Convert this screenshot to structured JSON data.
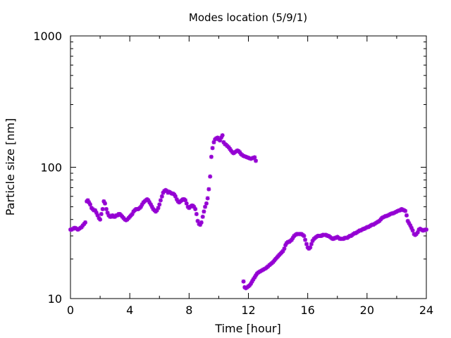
{
  "chart_data": {
    "type": "scatter",
    "title": "Modes location (5/9/1)",
    "xlabel": "Time [hour]",
    "ylabel": "Particle size [nm]",
    "xlim": [
      0,
      24
    ],
    "ylim": [
      10,
      1000
    ],
    "yscale": "log",
    "x_ticks": [
      0,
      4,
      8,
      12,
      16,
      20,
      24
    ],
    "x_tick_labels": [
      "0",
      "4",
      "8",
      "12",
      "16",
      "20",
      "24"
    ],
    "y_ticks": [
      10,
      100,
      1000
    ],
    "y_tick_labels": [
      "10",
      "100",
      "1000"
    ],
    "grid": false,
    "marker_color": "#9400d3",
    "marker": "star",
    "series": [
      {
        "points": [
          [
            0.0,
            33.5
          ],
          [
            0.08,
            33.5
          ],
          [
            0.17,
            34.0
          ],
          [
            0.25,
            34.5
          ],
          [
            0.33,
            34.5
          ],
          [
            0.42,
            34.0
          ],
          [
            0.5,
            33.5
          ],
          [
            0.58,
            34.0
          ],
          [
            0.67,
            34.5
          ],
          [
            0.75,
            35.0
          ],
          [
            0.83,
            36.0
          ],
          [
            0.92,
            37.0
          ],
          [
            1.0,
            38.0
          ],
          [
            1.1,
            55.0
          ],
          [
            1.17,
            56.0
          ],
          [
            1.25,
            54.0
          ],
          [
            1.33,
            52.0
          ],
          [
            1.42,
            49.0
          ],
          [
            1.5,
            48.0
          ],
          [
            1.58,
            47.0
          ],
          [
            1.67,
            47.0
          ],
          [
            1.75,
            45.0
          ],
          [
            1.83,
            43.0
          ],
          [
            1.92,
            41.0
          ],
          [
            2.0,
            40.0
          ],
          [
            2.08,
            44.0
          ],
          [
            2.17,
            48.0
          ],
          [
            2.25,
            55.0
          ],
          [
            2.33,
            53.0
          ],
          [
            2.42,
            48.0
          ],
          [
            2.5,
            45.0
          ],
          [
            2.58,
            43.0
          ],
          [
            2.67,
            42.0
          ],
          [
            2.75,
            42.0
          ],
          [
            2.83,
            43.0
          ],
          [
            2.92,
            42.0
          ],
          [
            3.0,
            42.0
          ],
          [
            3.08,
            43.0
          ],
          [
            3.17,
            43.0
          ],
          [
            3.25,
            44.0
          ],
          [
            3.33,
            44.0
          ],
          [
            3.42,
            43.0
          ],
          [
            3.5,
            42.0
          ],
          [
            3.58,
            41.0
          ],
          [
            3.67,
            40.0
          ],
          [
            3.75,
            39.5
          ],
          [
            3.83,
            40.0
          ],
          [
            3.92,
            41.0
          ],
          [
            4.0,
            42.0
          ],
          [
            4.08,
            43.0
          ],
          [
            4.17,
            44.0
          ],
          [
            4.25,
            46.0
          ],
          [
            4.33,
            47.0
          ],
          [
            4.42,
            48.0
          ],
          [
            4.5,
            48.0
          ],
          [
            4.58,
            48.0
          ],
          [
            4.67,
            49.0
          ],
          [
            4.75,
            50.0
          ],
          [
            4.83,
            52.0
          ],
          [
            4.92,
            54.0
          ],
          [
            5.0,
            55.0
          ],
          [
            5.08,
            56.0
          ],
          [
            5.17,
            57.0
          ],
          [
            5.25,
            56.0
          ],
          [
            5.33,
            54.0
          ],
          [
            5.42,
            52.0
          ],
          [
            5.5,
            50.0
          ],
          [
            5.58,
            48.0
          ],
          [
            5.67,
            47.0
          ],
          [
            5.75,
            46.0
          ],
          [
            5.83,
            47.0
          ],
          [
            5.92,
            49.0
          ],
          [
            6.0,
            52.0
          ],
          [
            6.08,
            56.0
          ],
          [
            6.17,
            60.0
          ],
          [
            6.25,
            64.0
          ],
          [
            6.33,
            66.0
          ],
          [
            6.42,
            67.0
          ],
          [
            6.5,
            66.0
          ],
          [
            6.58,
            64.0
          ],
          [
            6.67,
            65.0
          ],
          [
            6.75,
            64.0
          ],
          [
            6.83,
            63.0
          ],
          [
            6.92,
            63.0
          ],
          [
            7.0,
            62.0
          ],
          [
            7.08,
            60.0
          ],
          [
            7.17,
            57.0
          ],
          [
            7.25,
            55.0
          ],
          [
            7.33,
            54.0
          ],
          [
            7.42,
            55.0
          ],
          [
            7.5,
            56.0
          ],
          [
            7.58,
            57.0
          ],
          [
            7.67,
            57.0
          ],
          [
            7.75,
            56.0
          ],
          [
            7.83,
            53.0
          ],
          [
            7.92,
            50.0
          ],
          [
            8.0,
            49.0
          ],
          [
            8.08,
            50.0
          ],
          [
            8.17,
            51.0
          ],
          [
            8.25,
            51.0
          ],
          [
            8.33,
            50.0
          ],
          [
            8.42,
            48.0
          ],
          [
            8.5,
            44.0
          ],
          [
            8.58,
            39.0
          ],
          [
            8.67,
            37.0
          ],
          [
            8.75,
            36.5
          ],
          [
            8.83,
            38.0
          ],
          [
            8.92,
            42.0
          ],
          [
            9.0,
            46.0
          ],
          [
            9.08,
            50.0
          ],
          [
            9.17,
            53.0
          ],
          [
            9.25,
            58.0
          ],
          [
            9.33,
            68.0
          ],
          [
            9.42,
            85.0
          ],
          [
            9.5,
            120.0
          ],
          [
            9.58,
            140.0
          ],
          [
            9.67,
            155.0
          ],
          [
            9.75,
            163.0
          ],
          [
            9.83,
            166.0
          ],
          [
            9.92,
            168.0
          ],
          [
            10.0,
            163.0
          ],
          [
            10.08,
            160.0
          ],
          [
            10.17,
            168.0
          ],
          [
            10.25,
            175.0
          ],
          [
            10.33,
            155.0
          ],
          [
            10.42,
            150.0
          ],
          [
            10.5,
            148.0
          ],
          [
            10.58,
            145.0
          ],
          [
            10.67,
            142.0
          ],
          [
            10.75,
            138.0
          ],
          [
            10.83,
            134.0
          ],
          [
            10.92,
            130.0
          ],
          [
            11.0,
            128.0
          ],
          [
            11.08,
            130.0
          ],
          [
            11.17,
            132.0
          ],
          [
            11.25,
            134.0
          ],
          [
            11.33,
            133.0
          ],
          [
            11.42,
            130.0
          ],
          [
            11.5,
            126.0
          ],
          [
            11.58,
            124.0
          ],
          [
            11.67,
            122.0
          ],
          [
            11.75,
            121.0
          ],
          [
            11.83,
            120.0
          ],
          [
            11.92,
            119.0
          ],
          [
            12.0,
            118.0
          ],
          [
            12.08,
            117.0
          ],
          [
            12.17,
            116.0
          ],
          [
            12.25,
            117.0
          ],
          [
            12.33,
            118.0
          ],
          [
            12.42,
            119.0
          ],
          [
            12.5,
            112.0
          ]
        ]
      },
      {
        "points": [
          [
            11.67,
            13.5
          ],
          [
            11.75,
            12.2
          ],
          [
            11.83,
            12.0
          ],
          [
            11.92,
            12.2
          ],
          [
            12.0,
            12.4
          ],
          [
            12.08,
            12.6
          ],
          [
            12.17,
            13.0
          ],
          [
            12.25,
            13.5
          ],
          [
            12.33,
            14.0
          ],
          [
            12.42,
            14.5
          ],
          [
            12.5,
            15.0
          ],
          [
            12.58,
            15.5
          ],
          [
            12.67,
            15.8
          ],
          [
            12.75,
            16.0
          ],
          [
            12.83,
            16.2
          ],
          [
            12.92,
            16.4
          ],
          [
            13.0,
            16.6
          ],
          [
            13.08,
            16.8
          ],
          [
            13.17,
            17.0
          ],
          [
            13.25,
            17.3
          ],
          [
            13.33,
            17.6
          ],
          [
            13.42,
            18.0
          ],
          [
            13.5,
            18.3
          ],
          [
            13.58,
            18.6
          ],
          [
            13.67,
            19.0
          ],
          [
            13.75,
            19.5
          ],
          [
            13.83,
            20.0
          ],
          [
            13.92,
            20.5
          ],
          [
            14.0,
            21.0
          ],
          [
            14.08,
            21.5
          ],
          [
            14.17,
            22.0
          ],
          [
            14.25,
            22.5
          ],
          [
            14.33,
            23.0
          ],
          [
            14.42,
            24.0
          ],
          [
            14.5,
            25.5
          ],
          [
            14.58,
            26.5
          ],
          [
            14.67,
            27.0
          ],
          [
            14.75,
            27.0
          ],
          [
            14.83,
            27.5
          ],
          [
            14.92,
            28.0
          ],
          [
            15.0,
            29.0
          ],
          [
            15.08,
            30.0
          ],
          [
            15.17,
            30.5
          ],
          [
            15.25,
            31.0
          ],
          [
            15.33,
            31.0
          ],
          [
            15.42,
            31.0
          ],
          [
            15.5,
            31.0
          ],
          [
            15.58,
            31.0
          ],
          [
            15.67,
            30.5
          ],
          [
            15.75,
            30.0
          ],
          [
            15.83,
            28.0
          ],
          [
            15.92,
            26.0
          ],
          [
            16.0,
            24.5
          ],
          [
            16.08,
            24.0
          ],
          [
            16.17,
            24.5
          ],
          [
            16.25,
            26.0
          ],
          [
            16.33,
            27.5
          ],
          [
            16.42,
            28.5
          ],
          [
            16.5,
            29.0
          ],
          [
            16.58,
            29.5
          ],
          [
            16.67,
            30.0
          ],
          [
            16.75,
            30.0
          ],
          [
            16.83,
            30.0
          ],
          [
            16.92,
            30.0
          ],
          [
            17.0,
            30.5
          ],
          [
            17.08,
            30.5
          ],
          [
            17.17,
            30.5
          ],
          [
            17.25,
            30.5
          ],
          [
            17.33,
            30.0
          ],
          [
            17.42,
            30.0
          ],
          [
            17.5,
            29.5
          ],
          [
            17.58,
            29.0
          ],
          [
            17.67,
            28.5
          ],
          [
            17.75,
            28.5
          ],
          [
            17.83,
            29.0
          ],
          [
            17.92,
            29.0
          ],
          [
            18.0,
            29.5
          ],
          [
            18.08,
            29.0
          ],
          [
            18.17,
            28.5
          ],
          [
            18.25,
            28.5
          ],
          [
            18.33,
            28.5
          ],
          [
            18.42,
            28.5
          ],
          [
            18.5,
            29.0
          ],
          [
            18.58,
            29.0
          ],
          [
            18.67,
            29.0
          ],
          [
            18.75,
            29.5
          ],
          [
            18.83,
            30.0
          ],
          [
            18.92,
            30.0
          ],
          [
            19.0,
            30.5
          ],
          [
            19.08,
            31.0
          ],
          [
            19.17,
            31.5
          ],
          [
            19.25,
            31.5
          ],
          [
            19.33,
            32.0
          ],
          [
            19.42,
            32.5
          ],
          [
            19.5,
            33.0
          ],
          [
            19.58,
            33.0
          ],
          [
            19.67,
            33.5
          ],
          [
            19.75,
            34.0
          ],
          [
            19.83,
            34.0
          ],
          [
            19.92,
            34.5
          ],
          [
            20.0,
            35.0
          ],
          [
            20.08,
            35.0
          ],
          [
            20.17,
            35.5
          ],
          [
            20.25,
            36.0
          ],
          [
            20.33,
            36.5
          ],
          [
            20.42,
            36.5
          ],
          [
            20.5,
            37.0
          ],
          [
            20.58,
            37.5
          ],
          [
            20.67,
            38.0
          ],
          [
            20.75,
            38.5
          ],
          [
            20.83,
            39.0
          ],
          [
            20.92,
            40.0
          ],
          [
            21.0,
            41.0
          ],
          [
            21.08,
            41.5
          ],
          [
            21.17,
            42.0
          ],
          [
            21.25,
            42.5
          ],
          [
            21.33,
            42.5
          ],
          [
            21.42,
            43.0
          ],
          [
            21.5,
            43.5
          ],
          [
            21.58,
            44.0
          ],
          [
            21.67,
            44.5
          ],
          [
            21.75,
            44.5
          ],
          [
            21.83,
            45.0
          ],
          [
            21.92,
            45.5
          ],
          [
            22.0,
            46.0
          ],
          [
            22.08,
            46.5
          ],
          [
            22.17,
            47.0
          ],
          [
            22.25,
            47.0
          ],
          [
            22.33,
            48.0
          ],
          [
            22.42,
            47.5
          ],
          [
            22.5,
            47.0
          ],
          [
            22.58,
            46.5
          ],
          [
            22.67,
            43.0
          ],
          [
            22.75,
            39.0
          ],
          [
            22.83,
            37.5
          ],
          [
            22.92,
            36.0
          ],
          [
            23.0,
            34.5
          ],
          [
            23.08,
            33.0
          ],
          [
            23.17,
            31.0
          ],
          [
            23.25,
            30.5
          ],
          [
            23.33,
            31.0
          ],
          [
            23.42,
            32.0
          ],
          [
            23.5,
            33.5
          ],
          [
            23.58,
            34.0
          ],
          [
            23.67,
            33.5
          ],
          [
            23.75,
            33.0
          ],
          [
            23.83,
            33.0
          ],
          [
            23.92,
            33.5
          ],
          [
            24.0,
            33.5
          ]
        ]
      }
    ]
  }
}
